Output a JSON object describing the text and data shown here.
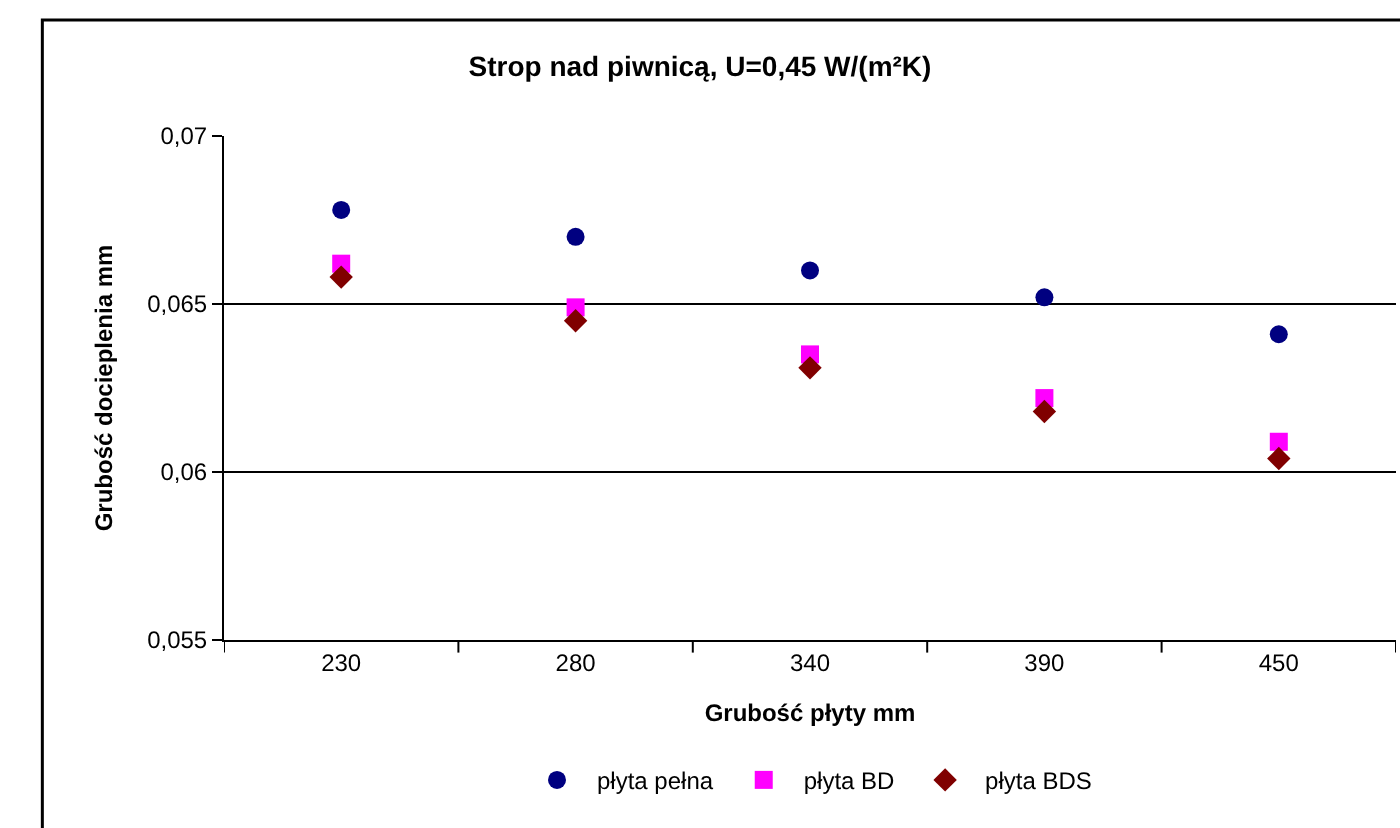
{
  "chart_data": {
    "type": "scatter",
    "title": "Strop nad piwnicą, U=0,45 W/(m²K)",
    "xlabel": "Grubość płyty mm",
    "ylabel": "Grubość docieplenia mm",
    "categories": [
      "230",
      "280",
      "340",
      "390",
      "450"
    ],
    "series": [
      {
        "name": "płyta pełna",
        "color": "#000080",
        "marker": "circle",
        "values": [
          0.0678,
          0.067,
          0.066,
          0.0652,
          0.0641
        ]
      },
      {
        "name": "płyta BD",
        "color": "#ff00ff",
        "marker": "square",
        "values": [
          0.0662,
          0.0649,
          0.0635,
          0.0622,
          0.0609
        ]
      },
      {
        "name": "płyta BDS",
        "color": "#800000",
        "marker": "diamond",
        "values": [
          0.0658,
          0.0645,
          0.0631,
          0.0618,
          0.0604
        ]
      }
    ],
    "ylim": [
      0.055,
      0.07
    ],
    "yticks": [
      {
        "value": 0.055,
        "label": "0,055"
      },
      {
        "value": 0.06,
        "label": "0,06"
      },
      {
        "value": 0.065,
        "label": "0,065"
      },
      {
        "value": 0.07,
        "label": "0,07"
      }
    ],
    "grid": "y",
    "legend": "bottom"
  }
}
